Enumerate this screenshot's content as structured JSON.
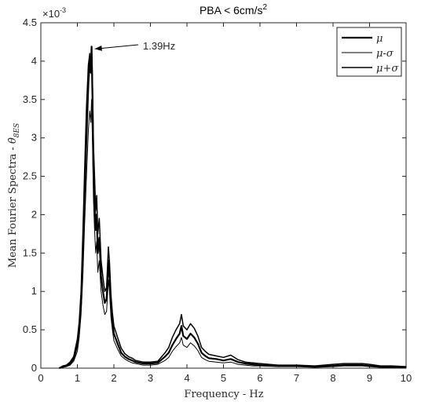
{
  "chart_data": {
    "type": "line",
    "title": "PBA < 6cm/s",
    "title_superscript": "2",
    "xlabel": "Frequency - Hz",
    "ylabel_prefix": "Mean Fourier Spectra - ",
    "ylabel_symbol": "θ̇",
    "ylabel_subscript": "8ES",
    "y_exponent_label": "×10",
    "y_exponent_power": "-3",
    "xlim": [
      0,
      10
    ],
    "ylim": [
      0,
      4.5
    ],
    "x_ticks": [
      0,
      1,
      2,
      3,
      4,
      5,
      6,
      7,
      8,
      9,
      10
    ],
    "y_ticks": [
      0,
      0.5,
      1,
      1.5,
      2,
      2.5,
      3,
      3.5,
      4,
      4.5
    ],
    "y_tick_labels": [
      "0",
      "0.5",
      "1",
      "1.5",
      "2",
      "2.5",
      "3",
      "3.5",
      "4",
      "4.5"
    ],
    "grid": false,
    "legend_position": "top-right",
    "annotation": {
      "text": "1.39Hz",
      "x": 1.39,
      "y": 4.19
    },
    "series": [
      {
        "name": "μ",
        "stroke_width": 2.2,
        "x": [
          0.5,
          0.6,
          0.7,
          0.8,
          0.9,
          1.0,
          1.05,
          1.1,
          1.15,
          1.2,
          1.25,
          1.3,
          1.34,
          1.37,
          1.39,
          1.41,
          1.44,
          1.47,
          1.5,
          1.53,
          1.56,
          1.6,
          1.65,
          1.7,
          1.75,
          1.8,
          1.85,
          1.88,
          1.92,
          1.96,
          2.0,
          2.1,
          2.2,
          2.3,
          2.4,
          2.5,
          2.6,
          2.8,
          3.0,
          3.2,
          3.4,
          3.5,
          3.6,
          3.7,
          3.8,
          3.85,
          3.9,
          4.0,
          4.1,
          4.2,
          4.3,
          4.4,
          4.5,
          4.6,
          4.8,
          5.0,
          5.2,
          5.4,
          5.6,
          5.8,
          6.0,
          6.5,
          7.0,
          7.5,
          8.0,
          8.3,
          8.6,
          8.8,
          9.0,
          9.3,
          9.6,
          10.0
        ],
        "y": [
          0.0,
          0.02,
          0.03,
          0.06,
          0.12,
          0.3,
          0.5,
          0.85,
          1.5,
          2.3,
          3.0,
          3.7,
          4.0,
          3.85,
          4.19,
          3.6,
          2.6,
          2.2,
          1.8,
          2.0,
          1.5,
          1.7,
          1.2,
          1.0,
          0.85,
          0.9,
          1.4,
          1.2,
          0.8,
          0.6,
          0.45,
          0.32,
          0.2,
          0.15,
          0.12,
          0.1,
          0.08,
          0.06,
          0.06,
          0.07,
          0.15,
          0.2,
          0.3,
          0.38,
          0.45,
          0.55,
          0.42,
          0.38,
          0.45,
          0.4,
          0.32,
          0.2,
          0.16,
          0.13,
          0.12,
          0.1,
          0.12,
          0.08,
          0.06,
          0.05,
          0.04,
          0.03,
          0.03,
          0.02,
          0.03,
          0.04,
          0.04,
          0.04,
          0.03,
          0.02,
          0.02,
          0.01
        ]
      },
      {
        "name": "μ-σ",
        "stroke_width": 1.0,
        "x": [
          0.5,
          0.6,
          0.7,
          0.8,
          0.9,
          1.0,
          1.05,
          1.1,
          1.15,
          1.2,
          1.25,
          1.3,
          1.34,
          1.37,
          1.39,
          1.41,
          1.44,
          1.47,
          1.5,
          1.53,
          1.56,
          1.6,
          1.65,
          1.7,
          1.75,
          1.8,
          1.85,
          1.88,
          1.92,
          1.96,
          2.0,
          2.1,
          2.2,
          2.3,
          2.4,
          2.5,
          2.6,
          2.8,
          3.0,
          3.2,
          3.4,
          3.5,
          3.6,
          3.7,
          3.8,
          3.85,
          3.9,
          4.0,
          4.1,
          4.2,
          4.3,
          4.4,
          4.5,
          4.6,
          4.8,
          5.0,
          5.2,
          5.4,
          5.6,
          5.8,
          6.0,
          6.5,
          7.0,
          7.5,
          8.0,
          8.3,
          8.6,
          8.8,
          9.0,
          9.3,
          9.6,
          10.0
        ],
        "y": [
          0.0,
          0.01,
          0.02,
          0.04,
          0.09,
          0.22,
          0.4,
          0.7,
          1.2,
          1.9,
          2.5,
          3.1,
          3.35,
          3.2,
          3.5,
          3.0,
          2.2,
          1.8,
          1.5,
          1.65,
          1.25,
          1.4,
          1.0,
          0.82,
          0.7,
          0.74,
          1.15,
          1.0,
          0.66,
          0.5,
          0.36,
          0.25,
          0.16,
          0.12,
          0.09,
          0.07,
          0.06,
          0.04,
          0.04,
          0.05,
          0.1,
          0.14,
          0.22,
          0.28,
          0.33,
          0.4,
          0.3,
          0.27,
          0.33,
          0.29,
          0.23,
          0.14,
          0.11,
          0.09,
          0.08,
          0.07,
          0.08,
          0.05,
          0.04,
          0.03,
          0.03,
          0.02,
          0.02,
          0.01,
          0.02,
          0.03,
          0.03,
          0.03,
          0.02,
          0.01,
          0.01,
          0.01
        ]
      },
      {
        "name": "μ+σ",
        "stroke_width": 1.5,
        "x": [
          0.5,
          0.6,
          0.7,
          0.8,
          0.9,
          1.0,
          1.05,
          1.1,
          1.15,
          1.2,
          1.25,
          1.3,
          1.34,
          1.37,
          1.39,
          1.41,
          1.44,
          1.47,
          1.5,
          1.53,
          1.56,
          1.6,
          1.65,
          1.7,
          1.75,
          1.8,
          1.85,
          1.88,
          1.92,
          1.96,
          2.0,
          2.1,
          2.2,
          2.3,
          2.4,
          2.5,
          2.6,
          2.8,
          3.0,
          3.2,
          3.4,
          3.5,
          3.6,
          3.7,
          3.8,
          3.85,
          3.9,
          4.0,
          4.1,
          4.2,
          4.3,
          4.4,
          4.5,
          4.6,
          4.8,
          5.0,
          5.2,
          5.4,
          5.6,
          5.8,
          6.0,
          6.5,
          7.0,
          7.5,
          8.0,
          8.3,
          8.6,
          8.8,
          9.0,
          9.3,
          9.6,
          10.0
        ],
        "y": [
          0.0,
          0.03,
          0.04,
          0.08,
          0.15,
          0.38,
          0.6,
          1.0,
          1.75,
          2.6,
          3.4,
          3.95,
          4.1,
          3.9,
          4.15,
          3.8,
          2.9,
          2.5,
          2.05,
          2.25,
          1.75,
          1.95,
          1.4,
          1.18,
          1.0,
          1.05,
          1.58,
          1.38,
          0.95,
          0.72,
          0.55,
          0.4,
          0.26,
          0.19,
          0.15,
          0.13,
          0.1,
          0.08,
          0.08,
          0.09,
          0.2,
          0.27,
          0.4,
          0.5,
          0.58,
          0.7,
          0.55,
          0.5,
          0.58,
          0.52,
          0.42,
          0.27,
          0.22,
          0.18,
          0.16,
          0.14,
          0.17,
          0.11,
          0.08,
          0.07,
          0.06,
          0.04,
          0.04,
          0.03,
          0.05,
          0.06,
          0.06,
          0.06,
          0.05,
          0.03,
          0.03,
          0.02
        ]
      }
    ]
  }
}
